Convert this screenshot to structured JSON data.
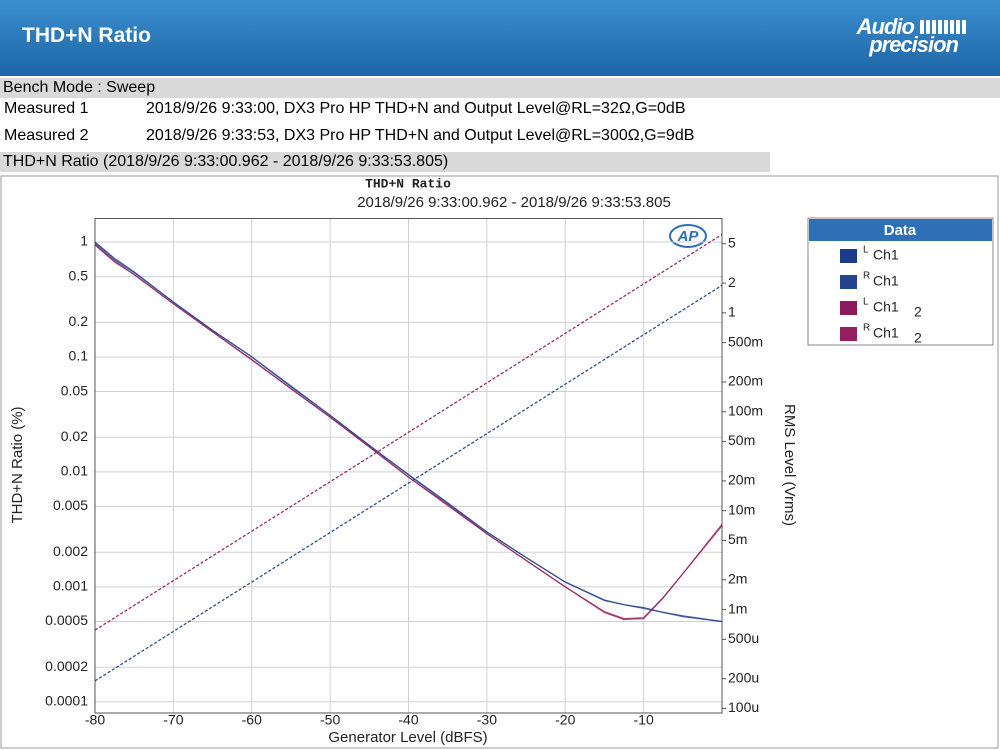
{
  "header": {
    "title": "THD+N Ratio",
    "logo": [
      "Audio",
      "precision"
    ]
  },
  "bench_mode": "Bench Mode : Sweep",
  "measurements": [
    {
      "label": "Measured 1",
      "text": "2018/9/26 9:33:00, DX3 Pro HP THD+N and Output Level@RL=32Ω,G=0dB"
    },
    {
      "label": "Measured 2",
      "text": "2018/9/26 9:33:53, DX3 Pro HP THD+N and Output Level@RL=300Ω,G=9dB"
    }
  ],
  "graph_caption": "THD+N Ratio (2018/9/26 9:33:00.962 - 2018/9/26 9:33:53.805)",
  "chart_data": {
    "type": "line",
    "title": "THD+N Ratio",
    "subtitle": "2018/9/26 9:33:00.962 - 2018/9/26 9:33:53.805",
    "xlabel": "Generator Level (dBFS)",
    "ylabel": "THD+N Ratio (%)",
    "y2label": "RMS Level (Vrms)",
    "logo": "AP",
    "log_y": true,
    "log_y2": true,
    "grid": true,
    "legend_title": "Data",
    "legend_position": "right",
    "x": [
      -80,
      -77.5,
      -75,
      -70,
      -65,
      -60,
      -55,
      -50,
      -45,
      -40,
      -35,
      -30,
      -25,
      -20,
      -15,
      -12.5,
      -10,
      -7.5,
      -5,
      0
    ],
    "xlim": [
      -80,
      0
    ],
    "xticks": [
      -80,
      -70,
      -60,
      -50,
      -40,
      -30,
      -20,
      -10
    ],
    "ylim": [
      8e-05,
      1.6
    ],
    "yticks": [
      1,
      0.5,
      0.2,
      0.1,
      0.05,
      0.02,
      0.01,
      0.005,
      0.002,
      0.001,
      0.0005,
      0.0002,
      0.0001
    ],
    "y2lim": [
      9e-05,
      9
    ],
    "y2ticks": [
      5,
      2,
      1,
      {
        "value": 0.5,
        "label": "500m"
      },
      {
        "value": 0.2,
        "label": "200m"
      },
      {
        "value": 0.1,
        "label": "100m"
      },
      {
        "value": 0.05,
        "label": "50m"
      },
      {
        "value": 0.02,
        "label": "20m"
      },
      {
        "value": 0.01,
        "label": "10m"
      },
      {
        "value": 0.005,
        "label": "5m"
      },
      {
        "value": 0.002,
        "label": "2m"
      },
      {
        "value": 0.001,
        "label": "1m"
      },
      {
        "value": 0.0005,
        "label": "500u"
      },
      {
        "value": 0.0002,
        "label": "200u"
      },
      {
        "value": 0.0001,
        "label": "100u"
      }
    ],
    "level_x": [
      -80,
      0
    ],
    "series": [
      {
        "name": "Ch1",
        "channel": "L",
        "color": "#1c3a8c",
        "values": [
          1.0,
          0.72,
          0.55,
          0.3,
          0.17,
          0.1,
          0.056,
          0.031,
          0.017,
          0.0095,
          0.0054,
          0.003,
          0.0018,
          0.0011,
          0.00077,
          0.0007,
          0.00066,
          0.0006,
          0.00056,
          0.0005
        ],
        "level_values": [
          0.00019,
          1.9
        ]
      },
      {
        "name": "Ch1",
        "channel": "R",
        "color": "#24448f",
        "values": [
          0.98,
          0.7,
          0.54,
          0.3,
          0.17,
          0.1,
          0.055,
          0.031,
          0.017,
          0.0094,
          0.0053,
          0.003,
          0.0018,
          0.0011,
          0.00076,
          0.0007,
          0.00065,
          0.0006,
          0.00055,
          0.0005
        ],
        "level_values": [
          0.00019,
          1.9
        ]
      },
      {
        "name": "Ch1",
        "channel": "L",
        "suffix": "2",
        "color": "#8c1a5c",
        "values": [
          0.95,
          0.68,
          0.52,
          0.29,
          0.165,
          0.095,
          0.053,
          0.03,
          0.0165,
          0.009,
          0.0052,
          0.0029,
          0.0017,
          0.001,
          0.0006,
          0.00052,
          0.00053,
          0.0008,
          0.0013,
          0.0035
        ],
        "level_values": [
          0.00062,
          6.2
        ]
      },
      {
        "name": "Ch1",
        "channel": "R",
        "suffix": "2",
        "color": "#94205f",
        "values": [
          0.94,
          0.67,
          0.52,
          0.29,
          0.165,
          0.094,
          0.053,
          0.03,
          0.0165,
          0.009,
          0.0051,
          0.0029,
          0.0017,
          0.001,
          0.00061,
          0.00053,
          0.00054,
          0.00081,
          0.0013,
          0.0034
        ],
        "level_values": [
          0.00062,
          6.2
        ]
      }
    ]
  }
}
